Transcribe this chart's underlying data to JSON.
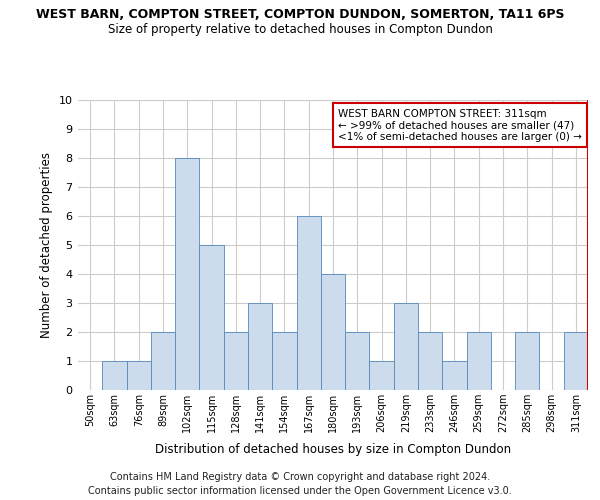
{
  "title_line1": "WEST BARN, COMPTON STREET, COMPTON DUNDON, SOMERTON, TA11 6PS",
  "title_line2": "Size of property relative to detached houses in Compton Dundon",
  "xlabel": "Distribution of detached houses by size in Compton Dundon",
  "ylabel": "Number of detached properties",
  "categories": [
    "50sqm",
    "63sqm",
    "76sqm",
    "89sqm",
    "102sqm",
    "115sqm",
    "128sqm",
    "141sqm",
    "154sqm",
    "167sqm",
    "180sqm",
    "193sqm",
    "206sqm",
    "219sqm",
    "233sqm",
    "246sqm",
    "259sqm",
    "272sqm",
    "285sqm",
    "298sqm",
    "311sqm"
  ],
  "values": [
    0,
    1,
    1,
    2,
    8,
    5,
    2,
    3,
    2,
    6,
    4,
    2,
    1,
    3,
    2,
    1,
    2,
    0,
    2,
    0,
    2
  ],
  "bar_color": "#ccdcec",
  "bar_edge_color": "#5588bb",
  "highlight_line_color": "#cc0000",
  "highlight_index": 20,
  "ylim": [
    0,
    10
  ],
  "yticks": [
    0,
    1,
    2,
    3,
    4,
    5,
    6,
    7,
    8,
    9,
    10
  ],
  "annotation_box_color": "#cc0000",
  "annotation_text_line1": "WEST BARN COMPTON STREET: 311sqm",
  "annotation_text_line2": "← >99% of detached houses are smaller (47)",
  "annotation_text_line3": "<1% of semi-detached houses are larger (0) →",
  "footer_line1": "Contains HM Land Registry data © Crown copyright and database right 2024.",
  "footer_line2": "Contains public sector information licensed under the Open Government Licence v3.0.",
  "background_color": "#ffffff",
  "grid_color": "#cccccc"
}
